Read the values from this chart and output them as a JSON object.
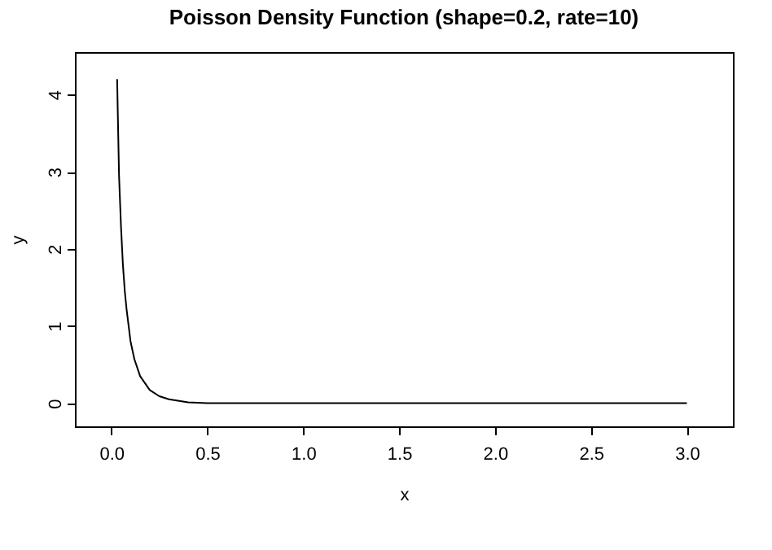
{
  "chart_data": {
    "type": "line",
    "title": "Poisson Density Function (shape=0.2, rate=10)",
    "xlabel": "x",
    "ylabel": "y",
    "x": [
      0.03,
      0.04,
      0.05,
      0.06,
      0.07,
      0.08,
      0.1,
      0.12,
      0.15,
      0.2,
      0.25,
      0.3,
      0.4,
      0.5,
      0.75,
      1.0,
      1.5,
      2.0,
      2.5,
      3.0
    ],
    "series": [
      {
        "color": "#000000",
        "values": [
          4.2,
          2.95,
          2.3,
          1.8,
          1.45,
          1.2,
          0.8,
          0.57,
          0.35,
          0.17,
          0.09,
          0.05,
          0.01,
          0,
          0,
          0,
          0,
          0,
          0,
          0
        ]
      }
    ],
    "xlim": [
      -0.19,
      3.24
    ],
    "ylim": [
      -0.3,
      4.55
    ],
    "xticks": [
      {
        "value": 0,
        "label": "0.0"
      },
      0.5,
      {
        "value": 1,
        "label": "1.0"
      },
      1.5,
      {
        "value": 2,
        "label": "2.0"
      },
      2.5,
      {
        "value": 3,
        "label": "3.0"
      }
    ],
    "yticks": [
      0,
      1,
      2,
      3,
      4
    ],
    "grid": false,
    "marker": "none",
    "line_style": "solid"
  }
}
